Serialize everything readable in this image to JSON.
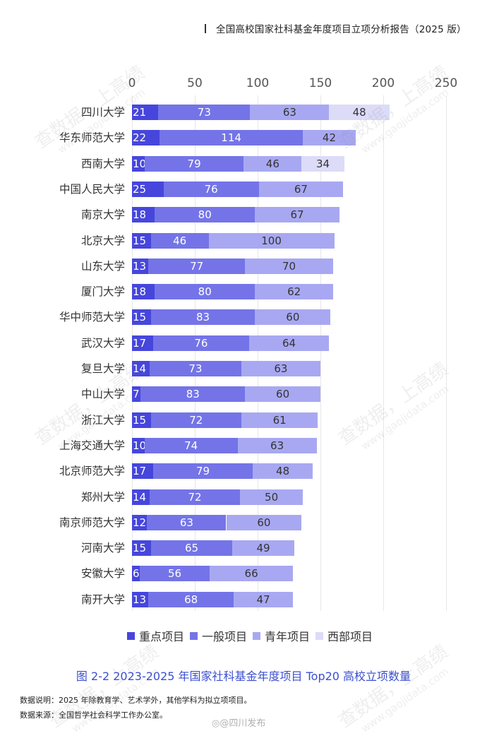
{
  "header": {
    "title": "全国高校国家社科基金年度项目立项分析报告（2025 版）"
  },
  "chart_data": {
    "type": "bar",
    "orientation": "horizontal",
    "stacked": true,
    "title": "图 2-2   2023-2025 年国家社科基金年度项目 Top20 高校立项数量",
    "xlabel": "",
    "ylabel": "",
    "xlim": [
      0,
      250
    ],
    "x_ticks": [
      "0",
      "50",
      "100",
      "150",
      "200",
      "250"
    ],
    "grid": true,
    "legend_position": "bottom",
    "categories": [
      "四川大学",
      "华东师范大学",
      "西南大学",
      "中国人民大学",
      "南京大学",
      "北京大学",
      "山东大学",
      "厦门大学",
      "华中师范大学",
      "武汉大学",
      "复旦大学",
      "中山大学",
      "浙江大学",
      "上海交通大学",
      "北京师范大学",
      "郑州大学",
      "南京师范大学",
      "河南大学",
      "安徽大学",
      "南开大学"
    ],
    "series": [
      {
        "name": "重点项目",
        "color": "#4646dc",
        "values": [
          21,
          22,
          10,
          25,
          18,
          15,
          13,
          18,
          15,
          17,
          14,
          7,
          15,
          10,
          17,
          14,
          12,
          15,
          6,
          13
        ]
      },
      {
        "name": "一般项目",
        "color": "#7474e8",
        "values": [
          73,
          114,
          79,
          76,
          80,
          46,
          77,
          80,
          83,
          76,
          73,
          83,
          72,
          74,
          79,
          72,
          63,
          65,
          56,
          68
        ]
      },
      {
        "name": "青年项目",
        "color": "#a8a8f2",
        "values": [
          63,
          42,
          46,
          67,
          67,
          100,
          70,
          62,
          60,
          64,
          63,
          60,
          61,
          63,
          48,
          50,
          60,
          49,
          66,
          47
        ]
      },
      {
        "name": "西部项目",
        "color": "#dcdcf8",
        "values": [
          48,
          null,
          34,
          null,
          null,
          null,
          null,
          null,
          null,
          null,
          null,
          null,
          null,
          null,
          null,
          null,
          null,
          null,
          null,
          null
        ]
      }
    ]
  },
  "legend": [
    {
      "label": "重点项目",
      "color": "#4646dc"
    },
    {
      "label": "一般项目",
      "color": "#7474e8"
    },
    {
      "label": "青年项目",
      "color": "#a8a8f2"
    },
    {
      "label": "西部项目",
      "color": "#dcdcf8"
    }
  ],
  "caption": "图 2-2   2023-2025 年国家社科基金年度项目 Top20 高校立项数量",
  "notes": {
    "description": "数据说明：2025 年除教育学、艺术学外，其他学科为拟立项项目。",
    "source": "数据来源：全国哲学社会科学工作办公室。"
  },
  "weibo_credit": "@四川发布",
  "watermark": {
    "text": "查数据，上高绩",
    "url": "www.gaojidata.com"
  }
}
